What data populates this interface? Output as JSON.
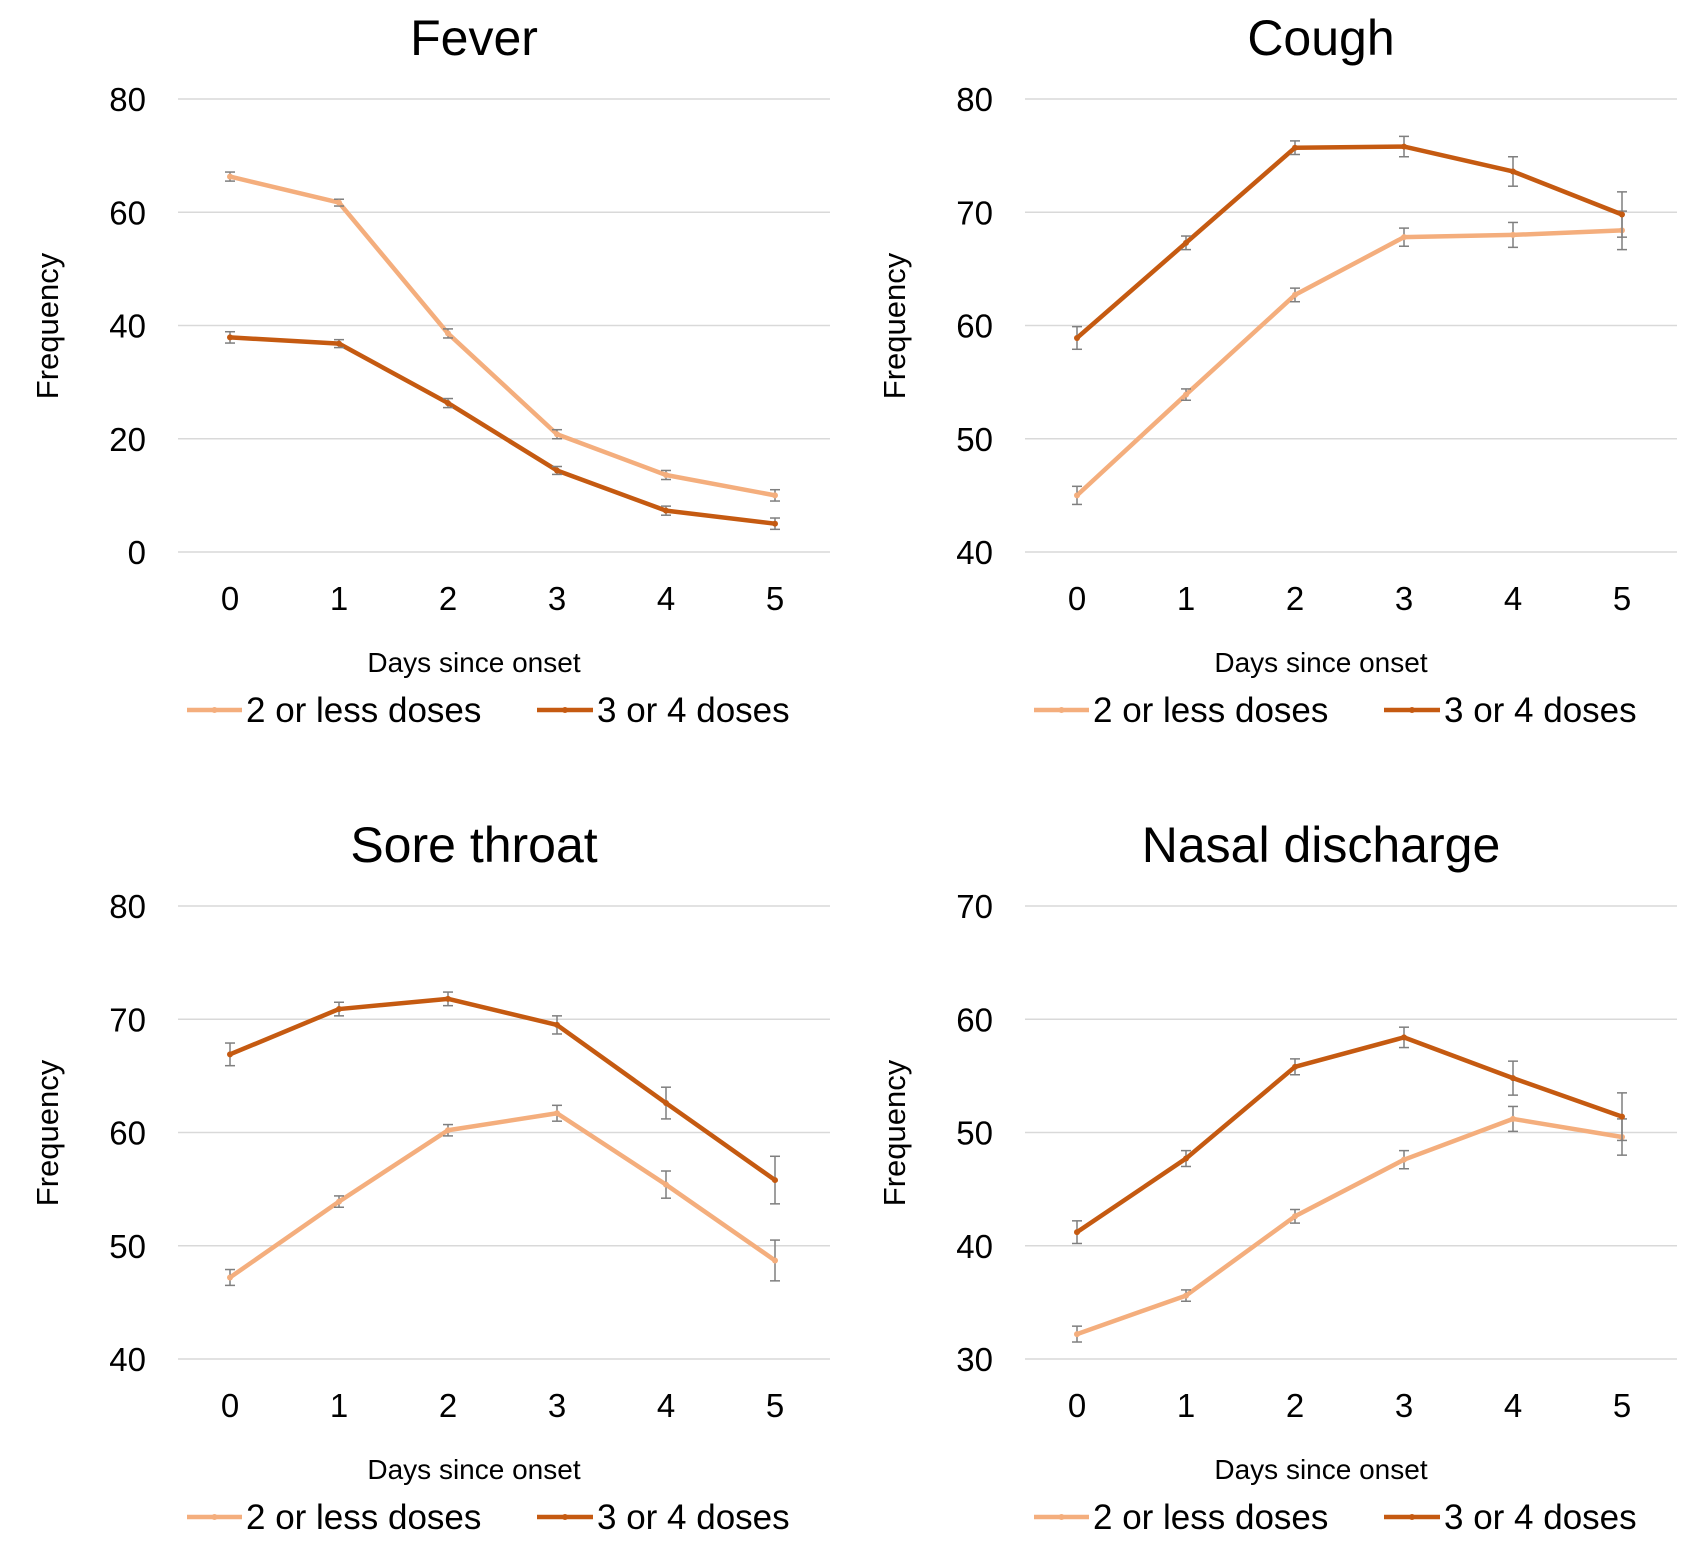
{
  "colors": {
    "series_light": "#F4AE7D",
    "series_dark": "#C55A11",
    "gridline": "#D9D9D9",
    "error_bar": "#7F7F7F"
  },
  "chart_data": [
    {
      "type": "line",
      "title": "Fever",
      "xlabel": "Days since onset",
      "ylabel": "Frequency",
      "x": [
        0,
        1,
        2,
        3,
        4,
        5
      ],
      "ylim": [
        0,
        80
      ],
      "yticks": [
        0,
        20,
        40,
        60,
        80
      ],
      "grid": true,
      "legend_position": "bottom",
      "series": [
        {
          "name": "2 or less doses",
          "values": [
            66.3,
            61.7,
            38.6,
            20.8,
            13.6,
            10.0
          ],
          "error": [
            0.8,
            0.6,
            0.8,
            0.8,
            0.8,
            1.0
          ]
        },
        {
          "name": "3 or 4 doses",
          "values": [
            37.9,
            36.8,
            26.3,
            14.4,
            7.3,
            5.0
          ],
          "error": [
            1.0,
            0.7,
            0.8,
            0.7,
            0.8,
            1.0
          ]
        }
      ]
    },
    {
      "type": "line",
      "title": "Cough",
      "xlabel": "Days since onset",
      "ylabel": "Frequency",
      "x": [
        0,
        1,
        2,
        3,
        4,
        5
      ],
      "ylim": [
        40,
        80
      ],
      "yticks": [
        40,
        50,
        60,
        70,
        80
      ],
      "grid": true,
      "legend_position": "bottom",
      "series": [
        {
          "name": "2 or less doses",
          "values": [
            45.0,
            53.9,
            62.7,
            67.8,
            68.0,
            68.4
          ],
          "error": [
            0.8,
            0.5,
            0.6,
            0.8,
            1.1,
            1.7
          ]
        },
        {
          "name": "3 or 4 doses",
          "values": [
            58.9,
            67.3,
            75.7,
            75.8,
            73.6,
            69.8
          ],
          "error": [
            1.0,
            0.6,
            0.6,
            0.9,
            1.3,
            2.0
          ]
        }
      ]
    },
    {
      "type": "line",
      "title": "Sore throat",
      "xlabel": "Days since onset",
      "ylabel": "Frequency",
      "x": [
        0,
        1,
        2,
        3,
        4,
        5
      ],
      "ylim": [
        40,
        80
      ],
      "yticks": [
        40,
        50,
        60,
        70,
        80
      ],
      "grid": true,
      "legend_position": "bottom",
      "series": [
        {
          "name": "2 or less doses",
          "values": [
            47.2,
            53.9,
            60.2,
            61.7,
            55.4,
            48.7
          ],
          "error": [
            0.7,
            0.5,
            0.5,
            0.7,
            1.2,
            1.8
          ]
        },
        {
          "name": "3 or 4 doses",
          "values": [
            66.9,
            70.9,
            71.8,
            69.5,
            62.6,
            55.8
          ],
          "error": [
            1.0,
            0.6,
            0.6,
            0.8,
            1.4,
            2.1
          ]
        }
      ]
    },
    {
      "type": "line",
      "title": "Nasal discharge",
      "xlabel": "Days since onset",
      "ylabel": "Frequency",
      "x": [
        0,
        1,
        2,
        3,
        4,
        5
      ],
      "ylim": [
        30,
        70
      ],
      "yticks": [
        30,
        40,
        50,
        60,
        70
      ],
      "grid": true,
      "legend_position": "bottom",
      "series": [
        {
          "name": "2 or less doses",
          "values": [
            32.2,
            35.6,
            42.6,
            47.6,
            51.2,
            49.6
          ],
          "error": [
            0.7,
            0.5,
            0.6,
            0.8,
            1.1,
            1.6
          ]
        },
        {
          "name": "3 or 4 doses",
          "values": [
            41.2,
            47.7,
            55.8,
            58.4,
            54.8,
            51.4
          ],
          "error": [
            1.0,
            0.7,
            0.7,
            0.9,
            1.5,
            2.1
          ]
        }
      ]
    }
  ]
}
